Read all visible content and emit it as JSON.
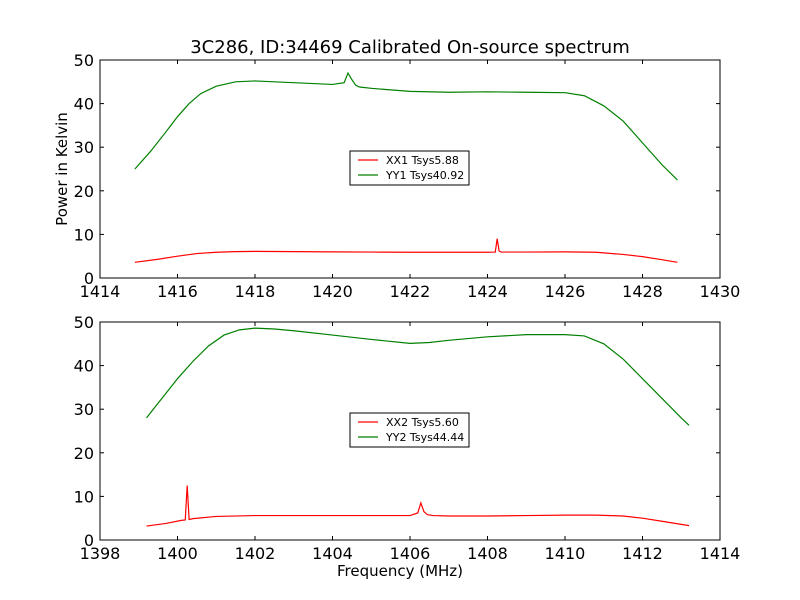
{
  "title": "3C286, ID:34469 Calibrated On-source spectrum",
  "colors": {
    "xx": "#ff0000",
    "yy": "#008000",
    "axis": "#000000"
  },
  "chart_data": [
    {
      "type": "line",
      "ylabel": "Power in Kelvin",
      "xlabel": "",
      "xlim": [
        1414,
        1430
      ],
      "ylim": [
        0,
        50
      ],
      "xticks": [
        1414,
        1416,
        1418,
        1420,
        1422,
        1424,
        1426,
        1428,
        1430
      ],
      "yticks": [
        0,
        10,
        20,
        30,
        40,
        50
      ],
      "legend_position": "center",
      "series": [
        {
          "name": "XX1 Tsys5.88",
          "color": "#ff0000",
          "x": [
            1414.9,
            1415.5,
            1416.0,
            1416.5,
            1417.0,
            1417.5,
            1418.0,
            1419.0,
            1420.0,
            1421.0,
            1422.0,
            1423.0,
            1424.0,
            1424.2,
            1424.25,
            1424.3,
            1424.35,
            1424.4,
            1425.0,
            1426.0,
            1426.8,
            1427.5,
            1428.0,
            1428.5,
            1428.9
          ],
          "y": [
            3.6,
            4.3,
            5.0,
            5.6,
            5.9,
            6.05,
            6.1,
            6.05,
            6.0,
            5.95,
            5.9,
            5.9,
            5.9,
            5.95,
            9.0,
            6.2,
            5.95,
            5.95,
            5.95,
            6.0,
            5.9,
            5.4,
            4.9,
            4.2,
            3.6
          ]
        },
        {
          "name": "YY1 Tsys40.92",
          "color": "#008000",
          "x": [
            1414.9,
            1415.3,
            1415.7,
            1416.0,
            1416.3,
            1416.6,
            1417.0,
            1417.5,
            1418.0,
            1418.5,
            1419.0,
            1419.5,
            1420.0,
            1420.3,
            1420.4,
            1420.5,
            1420.6,
            1420.7,
            1421.0,
            1422.0,
            1423.0,
            1424.0,
            1425.0,
            1426.0,
            1426.5,
            1427.0,
            1427.5,
            1428.0,
            1428.5,
            1428.9
          ],
          "y": [
            25.0,
            29.0,
            33.5,
            37.0,
            40.0,
            42.3,
            44.0,
            45.0,
            45.2,
            45.0,
            44.8,
            44.6,
            44.4,
            44.8,
            47.0,
            45.5,
            44.2,
            43.8,
            43.5,
            42.8,
            42.6,
            42.7,
            42.6,
            42.5,
            41.8,
            39.5,
            36.0,
            31.0,
            26.0,
            22.5
          ]
        }
      ]
    },
    {
      "type": "line",
      "ylabel": "",
      "xlabel": "Frequency (MHz)",
      "xlim": [
        1398,
        1414
      ],
      "ylim": [
        0,
        50
      ],
      "xticks": [
        1398,
        1400,
        1402,
        1404,
        1406,
        1408,
        1410,
        1412,
        1414
      ],
      "yticks": [
        0,
        10,
        20,
        30,
        40,
        50
      ],
      "legend_position": "center",
      "series": [
        {
          "name": "XX2 Tsys5.60",
          "color": "#ff0000",
          "x": [
            1399.2,
            1399.7,
            1400.1,
            1400.2,
            1400.25,
            1400.3,
            1400.4,
            1401.0,
            1402.0,
            1403.0,
            1404.0,
            1405.0,
            1406.0,
            1406.2,
            1406.28,
            1406.36,
            1406.45,
            1406.6,
            1407.0,
            1408.0,
            1409.0,
            1410.0,
            1410.8,
            1411.5,
            1412.0,
            1412.5,
            1413.2
          ],
          "y": [
            3.2,
            3.8,
            4.5,
            4.6,
            12.5,
            4.7,
            4.9,
            5.4,
            5.6,
            5.6,
            5.6,
            5.6,
            5.6,
            6.2,
            8.5,
            6.5,
            5.8,
            5.6,
            5.5,
            5.5,
            5.6,
            5.7,
            5.7,
            5.5,
            5.0,
            4.3,
            3.3
          ]
        },
        {
          "name": "YY2 Tsys44.44",
          "color": "#008000",
          "x": [
            1399.2,
            1399.6,
            1400.0,
            1400.4,
            1400.8,
            1401.2,
            1401.6,
            1402.0,
            1402.5,
            1403.0,
            1404.0,
            1405.0,
            1406.0,
            1406.5,
            1407.0,
            1408.0,
            1409.0,
            1410.0,
            1410.5,
            1411.0,
            1411.5,
            1412.0,
            1412.5,
            1413.0,
            1413.2
          ],
          "y": [
            28.0,
            32.5,
            37.0,
            41.0,
            44.5,
            47.0,
            48.2,
            48.6,
            48.4,
            48.0,
            47.0,
            46.0,
            45.1,
            45.3,
            45.8,
            46.6,
            47.1,
            47.1,
            46.8,
            45.0,
            41.5,
            37.0,
            32.5,
            28.0,
            26.3
          ]
        }
      ]
    }
  ]
}
